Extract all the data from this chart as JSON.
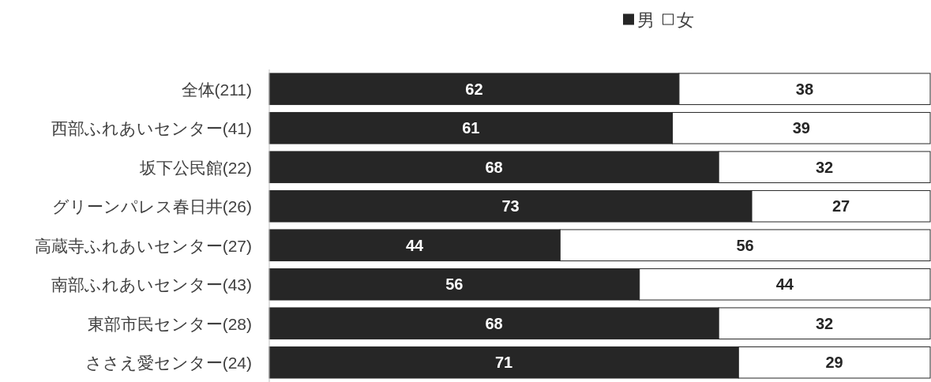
{
  "chart_data": {
    "type": "bar",
    "orientation": "horizontal",
    "stacked": true,
    "data_labels": true,
    "legend": "top",
    "categories": [
      "全体(211)",
      "西部ふれあいセンター(41)",
      "坂下公民館(22)",
      "グリーンパレス春日井(26)",
      "高蔵寺ふれあいセンター(27)",
      "南部ふれあいセンター(43)",
      "東部市民センター(28)",
      "ささえ愛センター(24)"
    ],
    "series": [
      {
        "name": "男",
        "color": "#262626",
        "values": [
          62,
          61,
          68,
          73,
          44,
          56,
          68,
          71
        ]
      },
      {
        "name": "女",
        "color": "#ffffff",
        "values": [
          38,
          39,
          32,
          27,
          56,
          44,
          32,
          29
        ]
      }
    ]
  }
}
